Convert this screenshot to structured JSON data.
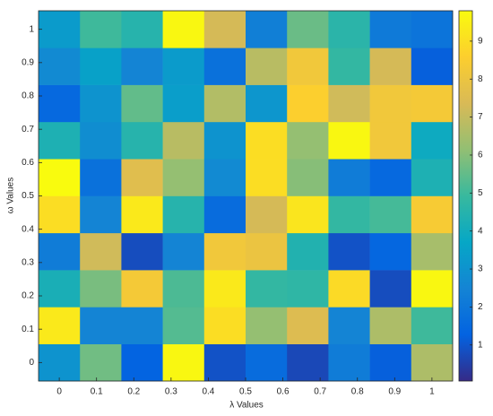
{
  "chart_data": {
    "type": "heatmap",
    "xlabel": "λ Values",
    "ylabel": "ω Values",
    "x": [
      0,
      0.1111,
      0.2222,
      0.3333,
      0.4444,
      0.5556,
      0.6667,
      0.7778,
      0.8889,
      1
    ],
    "y": [
      0,
      0.1111,
      0.2222,
      0.3333,
      0.4444,
      0.5556,
      0.6667,
      0.7778,
      0.8889,
      1
    ],
    "z": [
      [
        3.0,
        5.7,
        1.3,
        9.7,
        0.9,
        1.6,
        0.7,
        2.2,
        1.2,
        6.6
      ],
      [
        9.3,
        2.5,
        2.5,
        5.3,
        9.0,
        6.2,
        7.5,
        2.5,
        6.6,
        5.0
      ],
      [
        4.2,
        5.8,
        8.3,
        5.2,
        9.3,
        4.8,
        4.7,
        8.9,
        0.8,
        9.7
      ],
      [
        2.2,
        7.2,
        0.8,
        2.5,
        8.2,
        8.0,
        4.4,
        0.9,
        1.4,
        6.5
      ],
      [
        9.0,
        2.5,
        9.3,
        4.5,
        1.6,
        7.3,
        9.2,
        4.8,
        5.1,
        8.4
      ],
      [
        9.8,
        1.8,
        7.6,
        6.2,
        2.7,
        9.0,
        6.0,
        2.2,
        1.5,
        4.3
      ],
      [
        4.3,
        2.8,
        4.5,
        6.8,
        3.0,
        9.0,
        6.2,
        9.7,
        8.2,
        3.9
      ],
      [
        1.5,
        3.0,
        5.5,
        3.4,
        6.7,
        3.1,
        8.6,
        7.2,
        8.2,
        8.3
      ],
      [
        2.7,
        3.5,
        2.5,
        3.3,
        1.8,
        6.8,
        8.2,
        4.8,
        7.3,
        1.2
      ],
      [
        3.3,
        5.0,
        4.5,
        9.7,
        7.3,
        2.3,
        5.6,
        4.6,
        2.1,
        1.9
      ]
    ],
    "xlim": [
      -0.0556,
      1.0556
    ],
    "ylim": [
      -0.0556,
      1.0556
    ],
    "xticks": [
      0,
      0.1,
      0.2,
      0.3,
      0.4,
      0.5,
      0.6,
      0.7,
      0.8,
      0.9,
      1
    ],
    "yticks": [
      0,
      0.1,
      0.2,
      0.3,
      0.4,
      0.5,
      0.6,
      0.7,
      0.8,
      0.9,
      1
    ],
    "colormap": "parula",
    "clim": [
      0.05,
      9.8
    ],
    "cticks": [
      1,
      2,
      3,
      4,
      5,
      6,
      7,
      8,
      9
    ]
  }
}
